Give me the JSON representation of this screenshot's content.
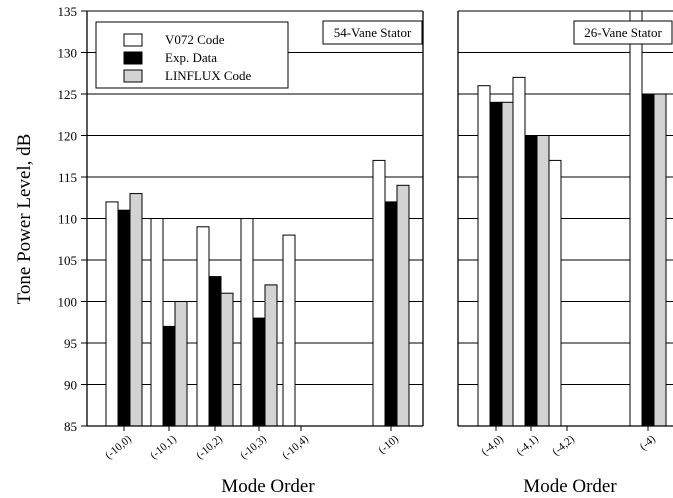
{
  "chart_data": [
    {
      "type": "bar",
      "panel_label": "54-Vane Stator",
      "categories": [
        "(-10,0)",
        "(-10,1)",
        "(-10,2)",
        "(-10,3)",
        "(-10,4)",
        "(-10)"
      ],
      "series": [
        {
          "name": "V072 Code",
          "values": [
            112,
            110,
            109,
            110,
            108,
            117
          ]
        },
        {
          "name": "Exp. Data",
          "values": [
            111,
            97,
            103,
            98,
            null,
            112
          ]
        },
        {
          "name": "LINFLUX Code",
          "values": [
            113,
            100,
            101,
            102,
            null,
            114
          ]
        }
      ],
      "ylabel": "Tone Power Level, dB",
      "xlabel": "Mode Order",
      "ylim": [
        85,
        135
      ],
      "yticks": [
        85,
        90,
        95,
        100,
        105,
        110,
        115,
        120,
        125,
        130,
        135
      ],
      "grid": "horizontal",
      "legend_placement": "top-left"
    },
    {
      "type": "bar",
      "panel_label": "26-Vane Stator",
      "categories": [
        "(-4,0)",
        "(-4,1)",
        "(-4,2)",
        "(-4)"
      ],
      "series": [
        {
          "name": "V072 Code",
          "values": [
            126,
            127,
            117,
            135
          ]
        },
        {
          "name": "Exp. Data",
          "values": [
            124,
            120,
            null,
            125
          ]
        },
        {
          "name": "LINFLUX Code",
          "values": [
            124,
            120,
            null,
            125
          ]
        }
      ],
      "xlabel": "Mode Order",
      "ylim": [
        85,
        135
      ],
      "grid": "horizontal"
    }
  ],
  "series_colors": {
    "V072 Code": "#ffffff",
    "Exp. Data": "#000000",
    "LINFLUX Code": "#d3d3d3"
  }
}
